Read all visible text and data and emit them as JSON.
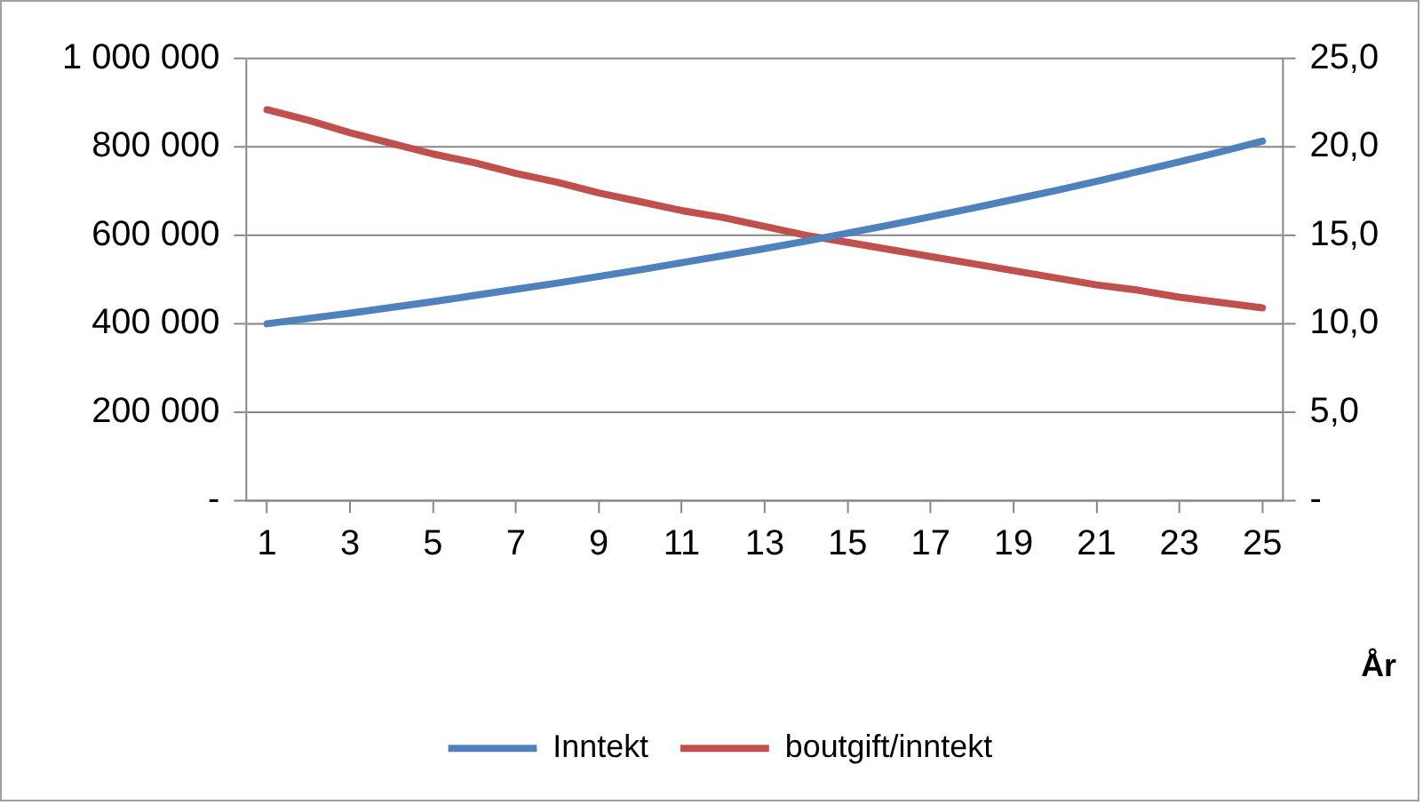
{
  "chart_data": {
    "type": "line",
    "xlabel": "År",
    "x": [
      1,
      2,
      3,
      4,
      5,
      6,
      7,
      8,
      9,
      10,
      11,
      12,
      13,
      14,
      15,
      16,
      17,
      18,
      19,
      20,
      21,
      22,
      23,
      24,
      25
    ],
    "xlim": [
      0.5,
      25.5
    ],
    "xticks": [
      1,
      3,
      5,
      7,
      9,
      11,
      13,
      15,
      17,
      19,
      21,
      23,
      25
    ],
    "series": [
      {
        "name": "Inntekt",
        "color": "#4f81bd",
        "values": [
          400000,
          412000,
          424000,
          437000,
          450000,
          464000,
          478000,
          492000,
          507000,
          522000,
          538000,
          554000,
          570000,
          587000,
          605000,
          623000,
          642000,
          661000,
          681000,
          701000,
          722000,
          744000,
          766000,
          789000,
          813000
        ]
      },
      {
        "name": "boutgift/inntekt",
        "color": "#c0504d",
        "axis": "y2",
        "values": [
          22.1,
          21.5,
          20.8,
          20.2,
          19.6,
          19.1,
          18.5,
          18.0,
          17.4,
          16.9,
          16.4,
          16.0,
          15.5,
          15.0,
          14.6,
          14.2,
          13.8,
          13.4,
          13.0,
          12.6,
          12.2,
          11.9,
          11.5,
          11.2,
          10.9
        ]
      }
    ],
    "ylim": [
      0,
      1000000
    ],
    "yticks": [
      {
        "value": 0,
        "label": "-"
      },
      {
        "value": 200000,
        "label": "200 000"
      },
      {
        "value": 400000,
        "label": "400 000"
      },
      {
        "value": 600000,
        "label": "600 000"
      },
      {
        "value": 800000,
        "label": "800 000"
      },
      {
        "value": 1000000,
        "label": "1 000 000"
      }
    ],
    "y2lim": [
      0,
      25
    ],
    "y2ticks": [
      {
        "value": 0,
        "label": "-"
      },
      {
        "value": 5,
        "label": "5,0"
      },
      {
        "value": 10,
        "label": "10,0"
      },
      {
        "value": 15,
        "label": "15,0"
      },
      {
        "value": 20,
        "label": "20,0"
      },
      {
        "value": 25,
        "label": "25,0"
      }
    ],
    "grid": "y",
    "legend": "bottom",
    "marker": "none",
    "line_style": "solid"
  }
}
